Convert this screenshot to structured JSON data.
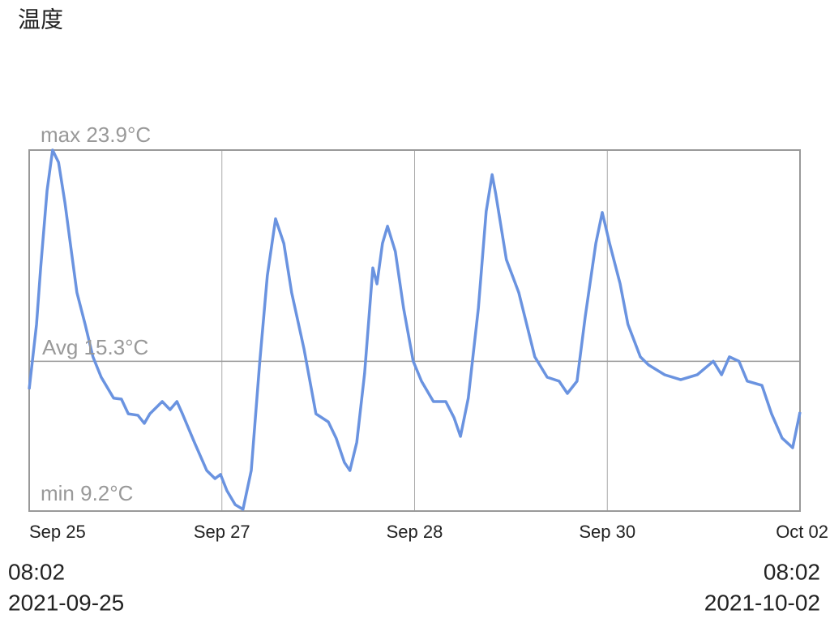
{
  "title": "温度",
  "chart_data": {
    "type": "line",
    "xlim": [
      0,
      168
    ],
    "xticks": [
      {
        "value": 0,
        "label": "Sep 25"
      },
      {
        "value": 42,
        "label": "Sep 27"
      },
      {
        "value": 84,
        "label": "Sep 28"
      },
      {
        "value": 126,
        "label": "Sep 30"
      },
      {
        "value": 168,
        "label": "Oct 02"
      }
    ],
    "ylim": [
      9.2,
      23.9
    ],
    "grid": true,
    "annotations": [
      {
        "label": "max 23.9°C",
        "value": 23.9
      },
      {
        "label": "Avg 15.3°C",
        "value": 15.3
      },
      {
        "label": "min 9.2°C",
        "value": 9.2
      }
    ],
    "x": [
      0,
      1.6,
      2.5,
      3.9,
      5.1,
      6.4,
      7.8,
      9.2,
      10.4,
      12.2,
      13.9,
      15.7,
      18.4,
      20.1,
      21.6,
      23.7,
      25.1,
      26.3,
      29.0,
      30.7,
      32.2,
      33.4,
      36.0,
      38.7,
      40.5,
      41.7,
      43.1,
      44.9,
      46.6,
      48.4,
      50.2,
      51.9,
      53.7,
      55.5,
      57.2,
      59.9,
      62.5,
      65.2,
      66.9,
      68.7,
      69.9,
      71.4,
      73.1,
      74.9,
      75.8,
      77.0,
      78.1,
      79.8,
      81.6,
      83.7,
      85.5,
      88.1,
      90.8,
      92.6,
      94.0,
      95.7,
      97.9,
      99.6,
      100.9,
      101.7,
      104.0,
      106.7,
      110.2,
      112.9,
      115.5,
      117.3,
      119.4,
      121.2,
      123.5,
      124.9,
      126.5,
      128.8,
      130.5,
      133.2,
      135.0,
      138.5,
      142.0,
      145.6,
      149.1,
      150.9,
      152.6,
      154.7,
      156.5,
      159.7,
      161.8,
      164.1,
      166.4,
      168.0
    ],
    "series": [
      {
        "color": "#6a93e0",
        "values": [
          14.16,
          16.8,
          19.1,
          22.25,
          23.9,
          23.4,
          21.75,
          19.77,
          18.1,
          16.8,
          15.48,
          14.65,
          13.8,
          13.76,
          13.16,
          13.1,
          12.77,
          13.16,
          13.66,
          13.33,
          13.66,
          13.16,
          12.0,
          10.85,
          10.52,
          10.69,
          10.03,
          9.46,
          9.27,
          10.85,
          15.15,
          18.78,
          21.1,
          20.1,
          18.1,
          15.8,
          13.16,
          12.83,
          12.17,
          11.18,
          10.85,
          12.0,
          14.8,
          19.1,
          18.45,
          20.1,
          20.8,
          19.77,
          17.46,
          15.3,
          14.49,
          13.66,
          13.66,
          13.0,
          12.24,
          13.8,
          17.46,
          21.4,
          22.9,
          22.1,
          19.44,
          18.1,
          15.48,
          14.65,
          14.49,
          13.99,
          14.49,
          17.13,
          20.1,
          21.36,
          20.1,
          18.45,
          16.8,
          15.48,
          15.15,
          14.75,
          14.55,
          14.75,
          15.3,
          14.75,
          15.48,
          15.3,
          14.49,
          14.32,
          13.16,
          12.17,
          11.78,
          13.23
        ]
      }
    ]
  },
  "range": {
    "start": {
      "time": "08:02",
      "date": "2021-09-25"
    },
    "end": {
      "time": "08:02",
      "date": "2021-10-02"
    }
  }
}
